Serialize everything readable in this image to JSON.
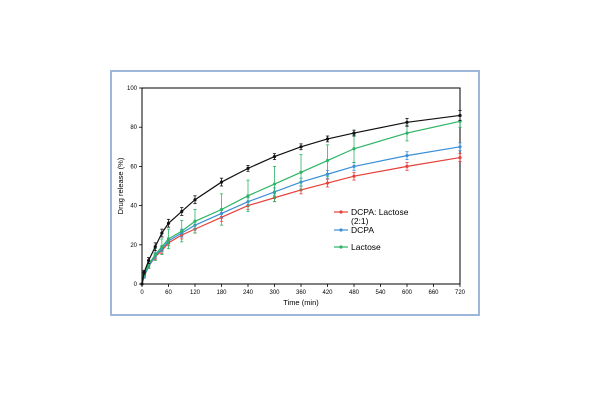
{
  "chart_data": {
    "type": "line",
    "xlabel": "Time (min)",
    "ylabel": "Drug release (%)",
    "xlim": [
      0,
      720
    ],
    "ylim": [
      0,
      100
    ],
    "xticks": [
      0,
      60,
      120,
      180,
      240,
      300,
      360,
      420,
      480,
      540,
      600,
      660,
      720
    ],
    "yticks": [
      0,
      20,
      40,
      60,
      80,
      100
    ],
    "grid": false,
    "legend_position": "center-right",
    "series": [
      {
        "name": "DCPA: Lactose (2:1)",
        "legend_lines": [
          "DCPA: Lactose",
          "(2:1)"
        ],
        "color": "#e8403a",
        "x": [
          0,
          5,
          15,
          30,
          45,
          60,
          90,
          120,
          180,
          240,
          300,
          360,
          420,
          480,
          600,
          720
        ],
        "y": [
          0,
          4,
          9,
          14,
          17,
          21,
          25,
          28,
          34,
          40,
          44,
          48,
          51.5,
          55,
          60,
          64.5
        ],
        "err": [
          0,
          1,
          1,
          1.5,
          1.5,
          1.5,
          2,
          2,
          2,
          2,
          2,
          2,
          2,
          2,
          2,
          2
        ]
      },
      {
        "name": "DCPA",
        "legend_lines": [
          "DCPA"
        ],
        "color": "#3b8fd6",
        "x": [
          0,
          5,
          15,
          30,
          45,
          60,
          90,
          120,
          180,
          240,
          300,
          360,
          420,
          480,
          600,
          720
        ],
        "y": [
          0,
          4,
          9,
          14.5,
          18,
          22,
          26,
          30,
          36,
          42,
          47,
          52,
          56,
          60,
          65.5,
          70
        ],
        "err": [
          0,
          1,
          1,
          1.5,
          1.5,
          1.5,
          2,
          2,
          2,
          2,
          2,
          2,
          2,
          2,
          2,
          2
        ]
      },
      {
        "name": "Lactose",
        "legend_lines": [
          "Lactose"
        ],
        "color": "#2db464",
        "x": [
          0,
          5,
          15,
          30,
          45,
          60,
          90,
          120,
          180,
          240,
          300,
          360,
          420,
          480,
          600,
          720
        ],
        "y": [
          0,
          5,
          10,
          15,
          19,
          23,
          27,
          32,
          38,
          45,
          51,
          57,
          63,
          69,
          77,
          83
        ],
        "err": [
          0,
          1,
          2,
          3,
          4,
          5,
          5.5,
          6,
          8,
          8,
          9,
          9,
          8,
          7,
          4,
          3
        ]
      },
      {
        "name": "",
        "legend_lines": [],
        "color": "#111111",
        "x": [
          0,
          5,
          15,
          30,
          45,
          60,
          90,
          120,
          180,
          240,
          300,
          360,
          420,
          480,
          600,
          720
        ],
        "y": [
          0,
          6,
          12,
          19,
          26,
          31,
          37,
          43,
          52,
          59,
          65,
          70,
          74,
          77,
          82.5,
          86
        ],
        "err": [
          0,
          1,
          1.5,
          2,
          2,
          2,
          2,
          2,
          2,
          1.5,
          1.5,
          1.5,
          1.5,
          1.5,
          2,
          2.5
        ]
      }
    ]
  }
}
